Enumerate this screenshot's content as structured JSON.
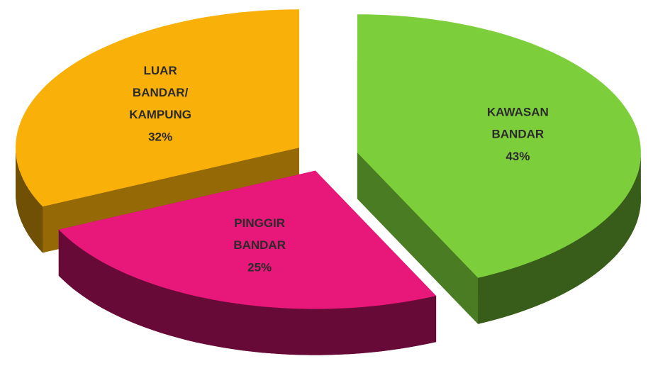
{
  "chart_data": {
    "type": "pie3d",
    "categories": [
      "KAWASAN BANDAR",
      "PINGGIR BANDAR",
      "LUAR BANDAR/ KAMPUNG"
    ],
    "values": [
      43,
      25,
      32
    ],
    "value_labels": [
      "43%",
      "25%",
      "32%"
    ],
    "colors": [
      "#7ccf3a",
      "#e8177a",
      "#f9b10a"
    ]
  }
}
